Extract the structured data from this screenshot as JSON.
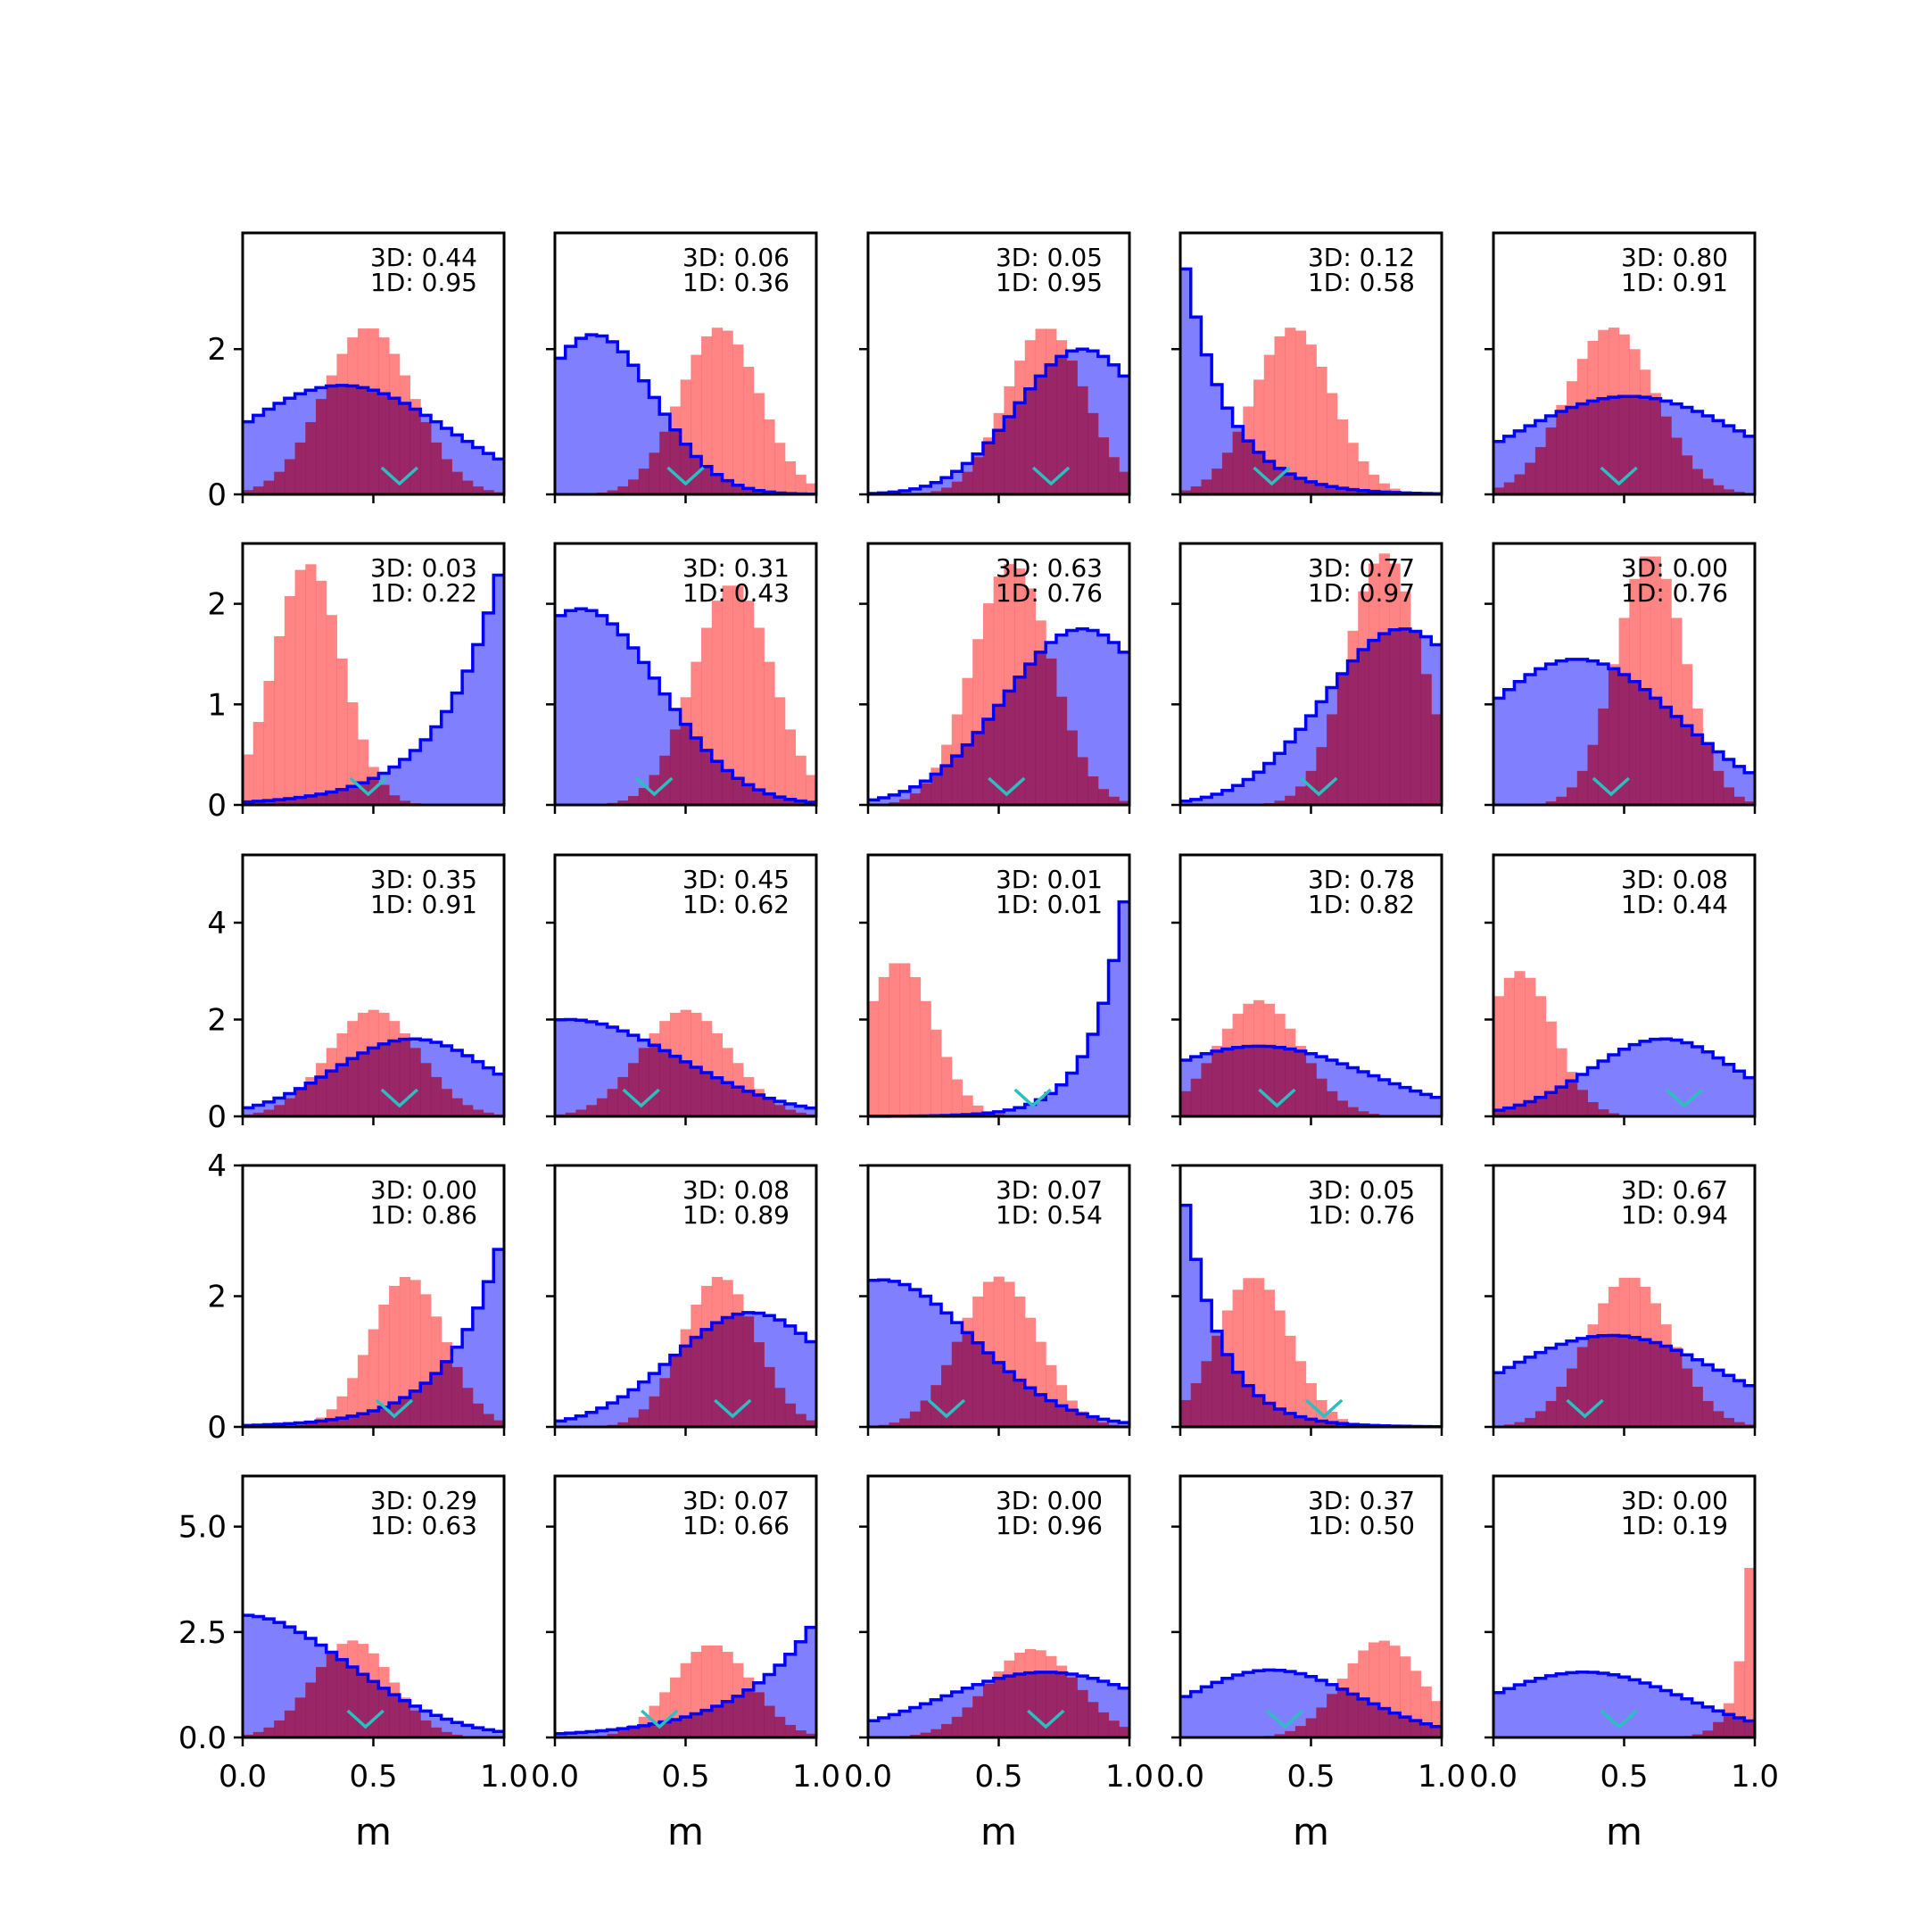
{
  "colors": {
    "model_3d": "#0000ff",
    "model_3d_fill": "#8080ff",
    "model_1d": "#ff6666",
    "overlap": "#8b1a60",
    "marker": "#2bbfbf"
  },
  "chart_data": {
    "type": "histogram-grid",
    "rows": 5,
    "cols": 5,
    "xlabel": "m",
    "xlim": [
      0,
      1
    ],
    "xticks": [
      "0.0",
      "0.5",
      "1.0"
    ],
    "row_ylims": [
      [
        0,
        3.6
      ],
      [
        0,
        2.6
      ],
      [
        0,
        5.4
      ],
      [
        0,
        4.0
      ],
      [
        0,
        6.2
      ]
    ],
    "row_yticks": [
      [
        "0",
        "2"
      ],
      [
        "0",
        "1",
        "2"
      ],
      [
        "0",
        "2",
        "4"
      ],
      [
        "0",
        "2",
        "4"
      ],
      [
        "0.0",
        "2.5",
        "5.0"
      ]
    ],
    "row_ytick_values": [
      [
        0,
        2
      ],
      [
        0,
        1,
        2
      ],
      [
        0,
        2,
        4
      ],
      [
        0,
        2,
        4
      ],
      [
        0,
        2.5,
        5.0
      ]
    ],
    "panels": [
      {
        "label_3d": "3D: 0.44",
        "label_1d": "1D: 0.95",
        "marker_x": 0.6,
        "hist_3d": {
          "shape": "gauss",
          "mu": 0.38,
          "sigma": 0.4,
          "peak": 1.5
        },
        "hist_1d": {
          "shape": "gauss",
          "mu": 0.48,
          "sigma": 0.17,
          "peak": 2.3
        }
      },
      {
        "label_3d": "3D: 0.06",
        "label_1d": "1D: 0.36",
        "marker_x": 0.5,
        "hist_3d": {
          "shape": "gauss",
          "mu": 0.15,
          "sigma": 0.23,
          "peak": 2.2
        },
        "hist_1d": {
          "shape": "gauss",
          "mu": 0.63,
          "sigma": 0.15,
          "peak": 2.3
        }
      },
      {
        "label_3d": "3D: 0.05",
        "label_1d": "1D: 0.95",
        "marker_x": 0.7,
        "hist_3d": {
          "shape": "gauss",
          "mu": 0.82,
          "sigma": 0.25,
          "peak": 2.0
        },
        "hist_1d": {
          "shape": "gauss",
          "mu": 0.68,
          "sigma": 0.15,
          "peak": 2.3
        }
      },
      {
        "label_3d": "3D: 0.12",
        "label_1d": "1D: 0.58",
        "marker_x": 0.35,
        "hist_3d": {
          "shape": "exp",
          "a": 3.5,
          "k": 6.0
        },
        "hist_1d": {
          "shape": "gauss",
          "mu": 0.43,
          "sigma": 0.15,
          "peak": 2.3
        }
      },
      {
        "label_3d": "3D: 0.80",
        "label_1d": "1D: 0.91",
        "marker_x": 0.48,
        "hist_3d": {
          "shape": "gauss",
          "mu": 0.52,
          "sigma": 0.45,
          "peak": 1.35
        },
        "hist_1d": {
          "shape": "gauss",
          "mu": 0.45,
          "sigma": 0.17,
          "peak": 2.3
        }
      },
      {
        "label_3d": "3D: 0.03",
        "label_1d": "1D: 0.22",
        "marker_x": 0.48,
        "hist_3d": {
          "shape": "exp",
          "a": 2.5,
          "k": -4.5,
          "from_right": true
        },
        "hist_1d": {
          "shape": "gauss",
          "mu": 0.25,
          "sigma": 0.13,
          "peak": 2.4
        }
      },
      {
        "label_3d": "3D: 0.31",
        "label_1d": "1D: 0.43",
        "marker_x": 0.38,
        "hist_3d": {
          "shape": "gauss",
          "mu": 0.1,
          "sigma": 0.3,
          "peak": 1.95
        },
        "hist_1d": {
          "shape": "gauss",
          "mu": 0.68,
          "sigma": 0.15,
          "peak": 2.2
        }
      },
      {
        "label_3d": "3D: 0.63",
        "label_1d": "1D: 0.76",
        "marker_x": 0.53,
        "hist_3d": {
          "shape": "gauss",
          "mu": 0.82,
          "sigma": 0.3,
          "peak": 1.75
        },
        "hist_1d": {
          "shape": "gauss",
          "mu": 0.55,
          "sigma": 0.15,
          "peak": 2.4
        }
      },
      {
        "label_3d": "3D: 0.77",
        "label_1d": "1D: 0.97",
        "marker_x": 0.53,
        "hist_3d": {
          "shape": "gauss",
          "mu": 0.85,
          "sigma": 0.3,
          "peak": 1.75
        },
        "hist_1d": {
          "shape": "gauss",
          "mu": 0.78,
          "sigma": 0.14,
          "peak": 2.5
        }
      },
      {
        "label_3d": "3D: 0.00",
        "label_1d": "1D: 0.76",
        "marker_x": 0.45,
        "hist_3d": {
          "shape": "gauss",
          "mu": 0.32,
          "sigma": 0.38,
          "peak": 1.45
        },
        "hist_1d": {
          "shape": "gauss",
          "mu": 0.6,
          "sigma": 0.13,
          "peak": 2.5
        }
      },
      {
        "label_3d": "3D: 0.35",
        "label_1d": "1D: 0.91",
        "marker_x": 0.6,
        "hist_3d": {
          "shape": "gauss",
          "mu": 0.65,
          "sigma": 0.3,
          "peak": 1.6
        },
        "hist_1d": {
          "shape": "gauss",
          "mu": 0.5,
          "sigma": 0.17,
          "peak": 2.2
        }
      },
      {
        "label_3d": "3D: 0.45",
        "label_1d": "1D: 0.62",
        "marker_x": 0.33,
        "hist_3d": {
          "shape": "gauss",
          "mu": 0.05,
          "sigma": 0.42,
          "peak": 2.0
        },
        "hist_1d": {
          "shape": "gauss",
          "mu": 0.5,
          "sigma": 0.17,
          "peak": 2.2
        }
      },
      {
        "label_3d": "3D: 0.01",
        "label_1d": "1D: 0.01",
        "marker_x": 0.63,
        "hist_3d": {
          "shape": "exp",
          "a": 5.2,
          "k": -8.0,
          "from_right": true
        },
        "hist_1d": {
          "shape": "gauss",
          "mu": 0.12,
          "sigma": 0.13,
          "peak": 3.2
        }
      },
      {
        "label_3d": "3D: 0.78",
        "label_1d": "1D: 0.82",
        "marker_x": 0.37,
        "hist_3d": {
          "shape": "gauss",
          "mu": 0.3,
          "sigma": 0.42,
          "peak": 1.45
        },
        "hist_1d": {
          "shape": "gauss",
          "mu": 0.3,
          "sigma": 0.16,
          "peak": 2.4
        }
      },
      {
        "label_3d": "3D: 0.08",
        "label_1d": "1D: 0.44",
        "marker_x": 0.73,
        "hist_3d": {
          "shape": "gauss",
          "mu": 0.65,
          "sigma": 0.28,
          "peak": 1.6
        },
        "hist_1d": {
          "shape": "gauss",
          "mu": 0.1,
          "sigma": 0.13,
          "peak": 3.0
        }
      },
      {
        "label_3d": "3D: 0.00",
        "label_1d": "1D: 0.86",
        "marker_x": 0.58,
        "hist_3d": {
          "shape": "exp",
          "a": 3.0,
          "k": -5.0,
          "from_right": true
        },
        "hist_1d": {
          "shape": "gauss",
          "mu": 0.63,
          "sigma": 0.14,
          "peak": 2.3
        }
      },
      {
        "label_3d": "3D: 0.08",
        "label_1d": "1D: 0.89",
        "marker_x": 0.68,
        "hist_3d": {
          "shape": "gauss",
          "mu": 0.75,
          "sigma": 0.3,
          "peak": 1.75
        },
        "hist_1d": {
          "shape": "gauss",
          "mu": 0.63,
          "sigma": 0.14,
          "peak": 2.3
        }
      },
      {
        "label_3d": "3D: 0.07",
        "label_1d": "1D: 0.54",
        "marker_x": 0.3,
        "hist_3d": {
          "shape": "gauss",
          "mu": 0.05,
          "sigma": 0.35,
          "peak": 2.25
        },
        "hist_1d": {
          "shape": "gauss",
          "mu": 0.5,
          "sigma": 0.15,
          "peak": 2.3
        }
      },
      {
        "label_3d": "3D: 0.05",
        "label_1d": "1D: 0.76",
        "marker_x": 0.55,
        "hist_3d": {
          "shape": "exp",
          "a": 3.9,
          "k": 7.0
        },
        "hist_1d": {
          "shape": "gauss",
          "mu": 0.28,
          "sigma": 0.14,
          "peak": 2.3
        }
      },
      {
        "label_3d": "3D: 0.67",
        "label_1d": "1D: 0.94",
        "marker_x": 0.35,
        "hist_3d": {
          "shape": "gauss",
          "mu": 0.45,
          "sigma": 0.42,
          "peak": 1.4
        },
        "hist_1d": {
          "shape": "gauss",
          "mu": 0.52,
          "sigma": 0.16,
          "peak": 2.3
        }
      },
      {
        "label_3d": "3D: 0.29",
        "label_1d": "1D: 0.63",
        "marker_x": 0.47,
        "hist_3d": {
          "shape": "gauss",
          "mu": 0.0,
          "sigma": 0.4,
          "peak": 2.9
        },
        "hist_1d": {
          "shape": "gauss",
          "mu": 0.42,
          "sigma": 0.15,
          "peak": 2.3
        }
      },
      {
        "label_3d": "3D: 0.07",
        "label_1d": "1D: 0.66",
        "marker_x": 0.4,
        "hist_3d": {
          "shape": "exp",
          "a": 2.8,
          "k": -3.5,
          "from_right": true
        },
        "hist_1d": {
          "shape": "gauss",
          "mu": 0.6,
          "sigma": 0.15,
          "peak": 2.2
        }
      },
      {
        "label_3d": "3D: 0.00",
        "label_1d": "1D: 0.96",
        "marker_x": 0.68,
        "hist_3d": {
          "shape": "gauss",
          "mu": 0.68,
          "sigma": 0.4,
          "peak": 1.55
        },
        "hist_1d": {
          "shape": "gauss",
          "mu": 0.63,
          "sigma": 0.17,
          "peak": 2.1
        }
      },
      {
        "label_3d": "3D: 0.37",
        "label_1d": "1D: 0.50",
        "marker_x": 0.4,
        "hist_3d": {
          "shape": "gauss",
          "mu": 0.35,
          "sigma": 0.33,
          "peak": 1.6
        },
        "hist_1d": {
          "shape": "gauss",
          "mu": 0.77,
          "sigma": 0.15,
          "peak": 2.3
        }
      },
      {
        "label_3d": "3D: 0.00",
        "label_1d": "1D: 0.19",
        "marker_x": 0.48,
        "hist_3d": {
          "shape": "gauss",
          "mu": 0.35,
          "sigma": 0.38,
          "peak": 1.55
        },
        "hist_1d": {
          "shape": "exp",
          "a": 6.0,
          "k": -20.0,
          "from_right": true
        }
      }
    ]
  }
}
